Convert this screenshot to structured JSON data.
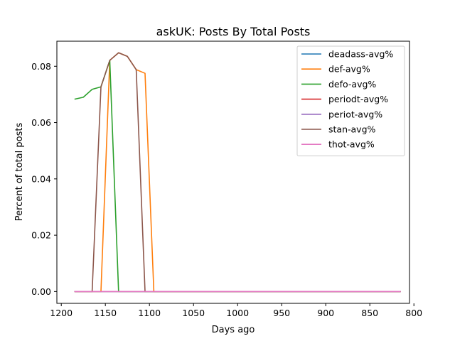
{
  "chart_data": {
    "type": "line",
    "title": "askUK: Posts By Total Posts",
    "xlabel": "Days ago",
    "ylabel": "Percent of total posts",
    "xlim": [
      1205,
      805
    ],
    "ylim": [
      -0.0042,
      0.0889
    ],
    "x_ticks": [
      1200,
      1150,
      1100,
      1050,
      1000,
      950,
      900,
      850,
      800
    ],
    "y_ticks": [
      0.0,
      0.02,
      0.04,
      0.06,
      0.08
    ],
    "y_tick_labels": [
      "0.00",
      "0.02",
      "0.04",
      "0.06",
      "0.08"
    ],
    "legend_position": "top-right",
    "grid": false,
    "series": [
      {
        "name": "deadass-avg%",
        "color": "#1f77b4",
        "points": [
          [
            1185,
            0.0
          ],
          [
            1175,
            0.0
          ],
          [
            1165,
            0.0
          ],
          [
            1155,
            0.0
          ],
          [
            1145,
            0.0
          ],
          [
            1135,
            0.0
          ],
          [
            1125,
            0.0
          ],
          [
            1115,
            0.0
          ],
          [
            1105,
            0.0
          ],
          [
            1095,
            0.0
          ],
          [
            1050,
            0.0
          ],
          [
            1000,
            0.0
          ],
          [
            950,
            0.0
          ],
          [
            900,
            0.0
          ],
          [
            850,
            0.0
          ],
          [
            815,
            0.0
          ]
        ]
      },
      {
        "name": "def-avg%",
        "color": "#ff7f0e",
        "points": [
          [
            1185,
            0.0
          ],
          [
            1175,
            0.0
          ],
          [
            1165,
            0.0
          ],
          [
            1155,
            0.0
          ],
          [
            1145,
            0.0821
          ],
          [
            1135,
            0.0848
          ],
          [
            1125,
            0.0835
          ],
          [
            1115,
            0.0788
          ],
          [
            1105,
            0.0775
          ],
          [
            1095,
            0.0
          ],
          [
            1050,
            0.0
          ],
          [
            1000,
            0.0
          ],
          [
            950,
            0.0
          ],
          [
            900,
            0.0
          ],
          [
            850,
            0.0
          ],
          [
            815,
            0.0
          ]
        ]
      },
      {
        "name": "defo-avg%",
        "color": "#2ca02c",
        "points": [
          [
            1185,
            0.0683
          ],
          [
            1175,
            0.069
          ],
          [
            1165,
            0.0718
          ],
          [
            1155,
            0.0727
          ],
          [
            1145,
            0.0821
          ],
          [
            1135,
            0.0
          ],
          [
            1125,
            0.0
          ],
          [
            1115,
            0.0
          ],
          [
            1105,
            0.0
          ],
          [
            1095,
            0.0
          ],
          [
            1050,
            0.0
          ],
          [
            1000,
            0.0
          ],
          [
            950,
            0.0
          ],
          [
            900,
            0.0
          ],
          [
            850,
            0.0
          ],
          [
            815,
            0.0
          ]
        ]
      },
      {
        "name": "periodt-avg%",
        "color": "#d62728",
        "points": [
          [
            1185,
            0.0
          ],
          [
            1175,
            0.0
          ],
          [
            1165,
            0.0
          ],
          [
            1155,
            0.0
          ],
          [
            1145,
            0.0
          ],
          [
            1135,
            0.0
          ],
          [
            1125,
            0.0
          ],
          [
            1115,
            0.0
          ],
          [
            1105,
            0.0
          ],
          [
            1095,
            0.0
          ],
          [
            1050,
            0.0
          ],
          [
            1000,
            0.0
          ],
          [
            950,
            0.0
          ],
          [
            900,
            0.0
          ],
          [
            850,
            0.0
          ],
          [
            815,
            0.0
          ]
        ]
      },
      {
        "name": "periot-avg%",
        "color": "#9467bd",
        "points": [
          [
            1185,
            0.0
          ],
          [
            1175,
            0.0
          ],
          [
            1165,
            0.0
          ],
          [
            1155,
            0.0
          ],
          [
            1145,
            0.0
          ],
          [
            1135,
            0.0
          ],
          [
            1125,
            0.0
          ],
          [
            1115,
            0.0
          ],
          [
            1105,
            0.0
          ],
          [
            1095,
            0.0
          ],
          [
            1050,
            0.0
          ],
          [
            1000,
            0.0
          ],
          [
            950,
            0.0
          ],
          [
            900,
            0.0
          ],
          [
            850,
            0.0
          ],
          [
            815,
            0.0
          ]
        ]
      },
      {
        "name": "stan-avg%",
        "color": "#8c564b",
        "points": [
          [
            1185,
            0.0
          ],
          [
            1175,
            0.0
          ],
          [
            1165,
            0.0
          ],
          [
            1155,
            0.0727
          ],
          [
            1145,
            0.0821
          ],
          [
            1135,
            0.0848
          ],
          [
            1125,
            0.0835
          ],
          [
            1115,
            0.0788
          ],
          [
            1105,
            0.0
          ],
          [
            1095,
            0.0
          ],
          [
            1050,
            0.0
          ],
          [
            1000,
            0.0
          ],
          [
            950,
            0.0
          ],
          [
            900,
            0.0
          ],
          [
            850,
            0.0
          ],
          [
            815,
            0.0
          ]
        ]
      },
      {
        "name": "thot-avg%",
        "color": "#e377c2",
        "points": [
          [
            1185,
            0.0
          ],
          [
            1175,
            0.0
          ],
          [
            1165,
            0.0
          ],
          [
            1155,
            0.0
          ],
          [
            1145,
            0.0
          ],
          [
            1135,
            0.0
          ],
          [
            1125,
            0.0
          ],
          [
            1115,
            0.0
          ],
          [
            1105,
            0.0
          ],
          [
            1095,
            0.0
          ],
          [
            1050,
            0.0
          ],
          [
            1000,
            0.0
          ],
          [
            950,
            0.0
          ],
          [
            900,
            0.0
          ],
          [
            850,
            0.0
          ],
          [
            815,
            0.0
          ]
        ]
      }
    ]
  }
}
